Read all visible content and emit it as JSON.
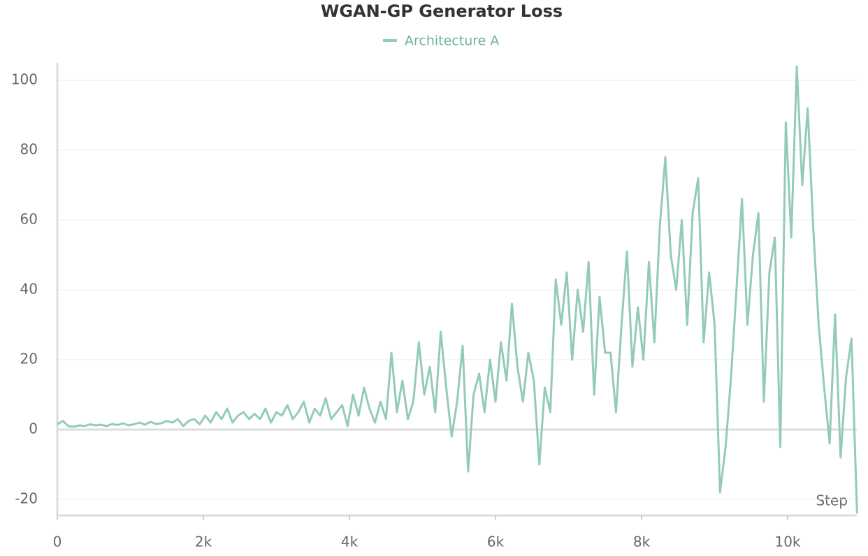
{
  "chart_data": {
    "type": "line",
    "title": "WGAN-GP Generator Loss",
    "x_label": "Step",
    "xlim": [
      0,
      10950
    ],
    "ylim": [
      -24.6,
      105
    ],
    "xticks": [
      0,
      {
        "value": 2000,
        "label": "2k"
      },
      {
        "value": 4000,
        "label": "4k"
      },
      {
        "value": 6000,
        "label": "6k"
      },
      {
        "value": 8000,
        "label": "8k"
      },
      {
        "value": 10000,
        "label": "10k"
      }
    ],
    "yticks": [
      -20,
      0,
      20,
      40,
      60,
      80,
      100
    ],
    "grid": true,
    "x": [
      0,
      75,
      150,
      225,
      300,
      375,
      450,
      525,
      600,
      675,
      750,
      825,
      900,
      975,
      1050,
      1125,
      1200,
      1275,
      1350,
      1425,
      1500,
      1575,
      1650,
      1725,
      1800,
      1875,
      1950,
      2025,
      2100,
      2175,
      2250,
      2325,
      2400,
      2475,
      2550,
      2625,
      2700,
      2775,
      2850,
      2925,
      3000,
      3075,
      3150,
      3225,
      3300,
      3375,
      3450,
      3525,
      3600,
      3675,
      3750,
      3825,
      3900,
      3975,
      4050,
      4125,
      4200,
      4275,
      4350,
      4425,
      4500,
      4575,
      4650,
      4725,
      4800,
      4875,
      4950,
      5025,
      5100,
      5175,
      5250,
      5325,
      5400,
      5475,
      5550,
      5625,
      5700,
      5775,
      5850,
      5925,
      6000,
      6075,
      6150,
      6225,
      6300,
      6375,
      6450,
      6525,
      6600,
      6675,
      6750,
      6825,
      6900,
      6975,
      7050,
      7125,
      7200,
      7275,
      7350,
      7425,
      7500,
      7575,
      7650,
      7725,
      7800,
      7875,
      7950,
      8025,
      8100,
      8175,
      8250,
      8325,
      8400,
      8475,
      8550,
      8625,
      8700,
      8775,
      8850,
      8925,
      9000,
      9075,
      9150,
      9225,
      9300,
      9375,
      9450,
      9525,
      9600,
      9675,
      9750,
      9825,
      9900,
      9975,
      10050,
      10125,
      10200,
      10275,
      10350,
      10425,
      10500,
      10575,
      10650,
      10725,
      10800,
      10875,
      10950
    ],
    "series": [
      {
        "name": "Architecture A",
        "color": "#94cbb8",
        "values": [
          1.5,
          2.5,
          1,
          0.8,
          1.2,
          1,
          1.5,
          1.2,
          1.4,
          1,
          1.6,
          1.3,
          1.8,
          1.2,
          1.5,
          2,
          1.4,
          2.2,
          1.6,
          1.8,
          2.5,
          2,
          3,
          1,
          2.5,
          3,
          1.5,
          4,
          2,
          5,
          3,
          6,
          2,
          4,
          5,
          3,
          4.5,
          3,
          6,
          2,
          5,
          4,
          7,
          3,
          5,
          8,
          2,
          6,
          4,
          9,
          3,
          5,
          7,
          1,
          10,
          4,
          12,
          6,
          2,
          8,
          3,
          22,
          5,
          14,
          3,
          8,
          25,
          10,
          18,
          5,
          28,
          12,
          -2,
          8,
          24,
          -12,
          10,
          16,
          5,
          20,
          8,
          25,
          14,
          36,
          18,
          8,
          22,
          14,
          -10,
          12,
          5,
          43,
          30,
          45,
          20,
          40,
          28,
          48,
          10,
          38,
          22,
          22,
          5,
          30,
          51,
          18,
          35,
          20,
          48,
          25,
          58,
          78,
          50,
          40,
          60,
          30,
          62,
          72,
          25,
          45,
          30,
          -18,
          -5,
          15,
          40,
          66,
          30,
          50,
          62,
          8,
          45,
          55,
          -5,
          88,
          55,
          104,
          70,
          92,
          58,
          30,
          12,
          -4,
          33,
          -8,
          15,
          26,
          -24
        ]
      }
    ]
  }
}
